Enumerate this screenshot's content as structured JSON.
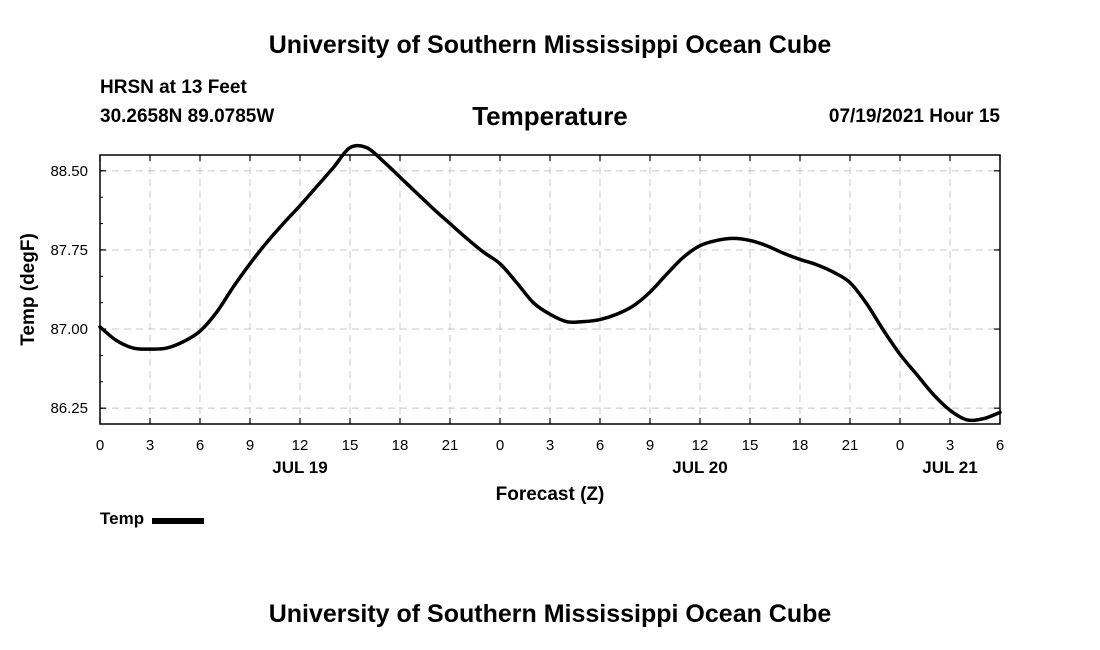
{
  "header": {
    "title": "University of Southern Mississippi Ocean Cube",
    "station": "HRSN at 13 Feet",
    "coords": "30.2658N  89.0785W",
    "variable": "Temperature",
    "datetime": "07/19/2021 Hour 15"
  },
  "footer": {
    "title": "University of Southern Mississippi Ocean Cube"
  },
  "legend": {
    "label": "Temp"
  },
  "chart_data": {
    "type": "line",
    "title": "Temperature",
    "xlabel": "Forecast (Z)",
    "ylabel": "Temp (degF)",
    "xlim": [
      0,
      54
    ],
    "ylim": [
      86.1,
      88.65
    ],
    "grid": true,
    "legend_position": "bottom-left",
    "x_ticks": [
      0,
      3,
      6,
      9,
      12,
      15,
      18,
      21,
      24,
      27,
      30,
      33,
      36,
      39,
      42,
      45,
      48,
      51,
      54
    ],
    "x_tick_labels": [
      "0",
      "3",
      "6",
      "9",
      "12",
      "15",
      "18",
      "21",
      "0",
      "3",
      "6",
      "9",
      "12",
      "15",
      "18",
      "21",
      "0",
      "3",
      "6"
    ],
    "date_labels": [
      {
        "x": 12,
        "label": "JUL 19"
      },
      {
        "x": 36,
        "label": "JUL 20"
      },
      {
        "x": 51,
        "label": "JUL 21"
      }
    ],
    "y_ticks": [
      86.25,
      87.0,
      87.75,
      88.5
    ],
    "y_tick_labels": [
      "86.25",
      "87.00",
      "87.75",
      "88.50"
    ],
    "series": [
      {
        "name": "Temp",
        "color": "#000000",
        "x": [
          0,
          1,
          2,
          3,
          4,
          5,
          6,
          7,
          8,
          9,
          10,
          11,
          12,
          13,
          14,
          15,
          16,
          17,
          18,
          19,
          20,
          21,
          22,
          23,
          24,
          25,
          26,
          27,
          28,
          29,
          30,
          31,
          32,
          33,
          34,
          35,
          36,
          37,
          38,
          39,
          40,
          41,
          42,
          43,
          44,
          45,
          46,
          47,
          48,
          49,
          50,
          51,
          52,
          53,
          54
        ],
        "values": [
          87.02,
          86.89,
          86.82,
          86.81,
          86.82,
          86.88,
          86.98,
          87.16,
          87.4,
          87.62,
          87.82,
          88.0,
          88.17,
          88.35,
          88.53,
          88.72,
          88.72,
          88.59,
          88.44,
          88.29,
          88.14,
          88.0,
          87.86,
          87.73,
          87.62,
          87.44,
          87.25,
          87.14,
          87.07,
          87.07,
          87.09,
          87.14,
          87.22,
          87.35,
          87.52,
          87.68,
          87.79,
          87.84,
          87.86,
          87.84,
          87.79,
          87.72,
          87.66,
          87.61,
          87.54,
          87.44,
          87.24,
          86.99,
          86.76,
          86.57,
          86.38,
          86.23,
          86.14,
          86.15,
          86.21
        ]
      }
    ]
  }
}
